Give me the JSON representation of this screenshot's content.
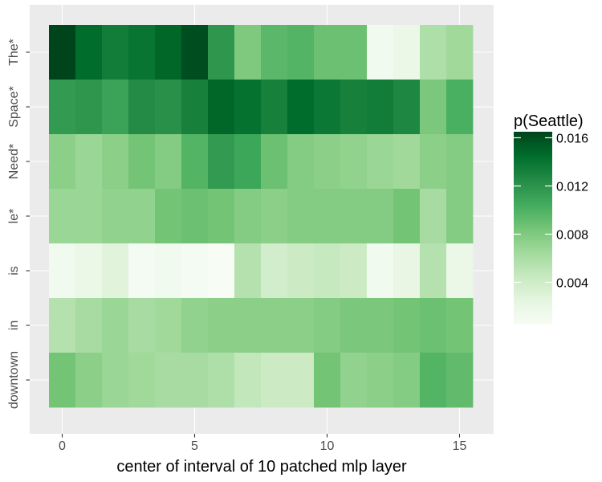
{
  "chart_data": {
    "type": "heatmap",
    "xlabel": "center of interval of 10 patched mlp layer",
    "ylabel": "",
    "x": [
      0,
      1,
      2,
      3,
      4,
      5,
      6,
      7,
      8,
      9,
      10,
      11,
      12,
      13,
      14,
      15
    ],
    "xlim": [
      -0.5,
      15.5
    ],
    "x_ticks": [
      0,
      5,
      10,
      15
    ],
    "y_categories": [
      "The*",
      "Space*",
      "Need*",
      "le*",
      "is",
      "in",
      "downtown"
    ],
    "values": [
      [
        0.0165,
        0.0145,
        0.0135,
        0.014,
        0.0148,
        0.016,
        0.0118,
        0.008,
        0.0095,
        0.0098,
        0.0088,
        0.0088,
        0.0012,
        0.0018,
        0.0058,
        0.0065
      ],
      [
        0.0115,
        0.0118,
        0.011,
        0.0125,
        0.0122,
        0.0132,
        0.0148,
        0.0142,
        0.0132,
        0.0145,
        0.0138,
        0.0132,
        0.0135,
        0.0128,
        0.0082,
        0.0102
      ],
      [
        0.0075,
        0.0068,
        0.0075,
        0.0085,
        0.0078,
        0.0098,
        0.0115,
        0.0108,
        0.0088,
        0.0078,
        0.0075,
        0.0072,
        0.0068,
        0.0065,
        0.0075,
        0.0078
      ],
      [
        0.0068,
        0.0068,
        0.0072,
        0.0072,
        0.0085,
        0.0088,
        0.0085,
        0.0078,
        0.0075,
        0.0078,
        0.0078,
        0.0078,
        0.0078,
        0.0085,
        0.0062,
        0.0078
      ],
      [
        0.0012,
        0.0018,
        0.0028,
        0.0008,
        0.0012,
        0.0008,
        0.0005,
        0.0055,
        0.0038,
        0.0042,
        0.0045,
        0.0042,
        0.0012,
        0.0022,
        0.0055,
        0.0018
      ],
      [
        0.0055,
        0.0062,
        0.0068,
        0.0062,
        0.0065,
        0.0072,
        0.0075,
        0.0075,
        0.0075,
        0.0075,
        0.0078,
        0.0082,
        0.0082,
        0.0085,
        0.0088,
        0.0085
      ],
      [
        0.0085,
        0.0075,
        0.0068,
        0.0065,
        0.0062,
        0.0062,
        0.0058,
        0.0048,
        0.0042,
        0.0042,
        0.0085,
        0.0072,
        0.0075,
        0.0078,
        0.0098,
        0.0092
      ]
    ],
    "legend": {
      "title": "p(Seattle)",
      "ticks": [
        "0.004",
        "0.008",
        "0.012",
        "0.016"
      ],
      "tick_values": [
        0.004,
        0.008,
        0.012,
        0.016
      ],
      "range": [
        0.0005,
        0.0165
      ],
      "placement": "right"
    },
    "colors": {
      "panel_background": "#EBEBEB",
      "grid": "#FFFFFF",
      "low": "#F7FCF5",
      "high": "#00441B",
      "axis_text": "#4D4D4D",
      "tick": "#333333"
    }
  }
}
